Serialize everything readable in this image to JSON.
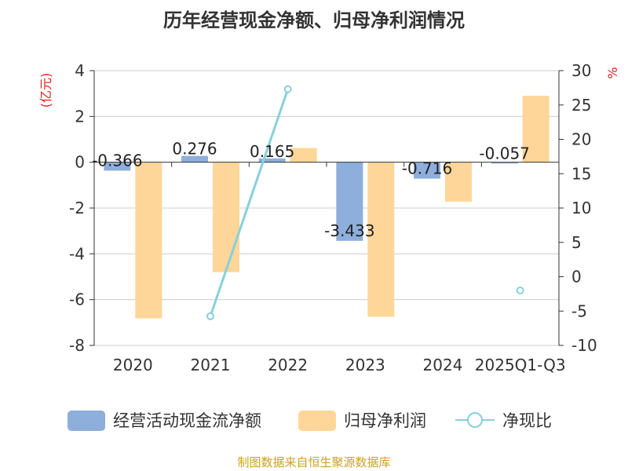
{
  "chart_data": {
    "type": "bar",
    "title": "历年经营现金净额、归母净利润情况",
    "categories": [
      "2020",
      "2021",
      "2022",
      "2023",
      "2024",
      "2025Q1-Q3"
    ],
    "left_axis": {
      "unit": "(亿元)",
      "ylim": [
        -8,
        4
      ],
      "ticks": [
        4,
        2,
        0,
        -2,
        -4,
        -6,
        -8
      ]
    },
    "right_axis": {
      "unit": "%",
      "ylim": [
        -10,
        30
      ],
      "ticks": [
        30,
        25,
        20,
        15,
        10,
        5,
        0,
        -5,
        -10
      ]
    },
    "series": [
      {
        "name": "经营活动现金流净额",
        "kind": "bar",
        "axis": "left",
        "color": "#8eaedb",
        "values": [
          -0.366,
          0.276,
          0.165,
          -3.433,
          -0.716,
          -0.057
        ],
        "labels": [
          "-0.366",
          "0.276",
          "0.165",
          "-3.433",
          "-0.716",
          "-0.057"
        ]
      },
      {
        "name": "归母净利润",
        "kind": "bar",
        "axis": "left",
        "color": "#ffd699",
        "values": [
          -6.82,
          -4.8,
          0.62,
          -6.75,
          -1.72,
          2.9
        ]
      },
      {
        "name": "净现比",
        "kind": "line",
        "axis": "right",
        "color": "#88d0da",
        "values": [
          null,
          -5.75,
          27.3,
          null,
          null,
          -2.0
        ]
      }
    ],
    "legend_position": "bottom",
    "grid": true,
    "source": "制图数据来自恒生聚源数据库"
  }
}
